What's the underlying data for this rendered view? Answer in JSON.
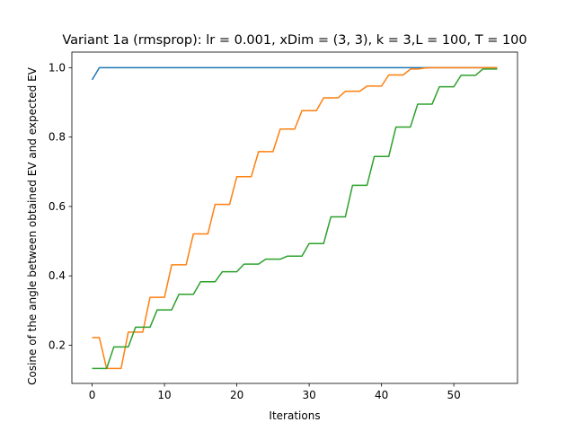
{
  "chart_data": {
    "type": "line",
    "title": "Variant 1a (rmsprop): lr = 0.001, xDim = (3, 3), k = 3,L = 100, T = 100",
    "xlabel": "Iterations",
    "ylabel": "Cosine of the angle between obtained EV and expected EV",
    "xlim": [
      -2.8,
      58.8
    ],
    "ylim": [
      0.09,
      1.045
    ],
    "xticks": [
      0,
      10,
      20,
      30,
      40,
      50
    ],
    "yticks": [
      0.2,
      0.4,
      0.6,
      0.8,
      1.0
    ],
    "ytick_labels": [
      "0.2",
      "0.4",
      "0.6",
      "0.8",
      "1.0"
    ],
    "grid": false,
    "x": [
      0,
      1,
      2,
      3,
      4,
      5,
      6,
      7,
      8,
      9,
      10,
      11,
      12,
      13,
      14,
      15,
      16,
      17,
      18,
      19,
      20,
      21,
      22,
      23,
      24,
      25,
      26,
      27,
      28,
      29,
      30,
      31,
      32,
      33,
      34,
      35,
      36,
      37,
      38,
      39,
      40,
      41,
      42,
      43,
      44,
      45,
      46,
      47,
      48,
      49,
      50,
      51,
      52,
      53,
      54,
      55,
      56
    ],
    "series": [
      {
        "color": "#1f77b4",
        "values": [
          0.965,
          1.0,
          1.0,
          1.0,
          1.0,
          1.0,
          1.0,
          1.0,
          1.0,
          1.0,
          1.0,
          1.0,
          1.0,
          1.0,
          1.0,
          1.0,
          1.0,
          1.0,
          1.0,
          1.0,
          1.0,
          1.0,
          1.0,
          1.0,
          1.0,
          1.0,
          1.0,
          1.0,
          1.0,
          1.0,
          1.0,
          1.0,
          1.0,
          1.0,
          1.0,
          1.0,
          1.0,
          1.0,
          1.0,
          1.0,
          1.0,
          1.0,
          1.0,
          1.0,
          1.0,
          1.0,
          1.0,
          1.0,
          1.0,
          1.0,
          1.0,
          1.0,
          1.0,
          1.0,
          1.0,
          1.0,
          1.0
        ]
      },
      {
        "color": "#ff7f0e",
        "values": [
          0.222,
          0.222,
          0.133,
          0.133,
          0.133,
          0.238,
          0.238,
          0.238,
          0.338,
          0.338,
          0.338,
          0.432,
          0.432,
          0.432,
          0.521,
          0.521,
          0.521,
          0.606,
          0.606,
          0.606,
          0.686,
          0.686,
          0.686,
          0.758,
          0.758,
          0.758,
          0.823,
          0.823,
          0.823,
          0.876,
          0.876,
          0.876,
          0.913,
          0.913,
          0.913,
          0.932,
          0.932,
          0.932,
          0.947,
          0.947,
          0.947,
          0.979,
          0.979,
          0.979,
          0.996,
          0.996,
          0.999,
          1.0,
          1.0,
          1.0,
          1.0,
          1.0,
          1.0,
          1.0,
          1.0,
          1.0,
          1.0
        ]
      },
      {
        "color": "#2ca02c",
        "values": [
          0.133,
          0.133,
          0.133,
          0.195,
          0.195,
          0.195,
          0.252,
          0.252,
          0.252,
          0.302,
          0.302,
          0.302,
          0.347,
          0.347,
          0.347,
          0.383,
          0.383,
          0.383,
          0.412,
          0.412,
          0.412,
          0.434,
          0.434,
          0.434,
          0.448,
          0.448,
          0.448,
          0.457,
          0.457,
          0.457,
          0.493,
          0.493,
          0.493,
          0.57,
          0.57,
          0.57,
          0.661,
          0.661,
          0.661,
          0.744,
          0.744,
          0.744,
          0.829,
          0.829,
          0.829,
          0.895,
          0.895,
          0.895,
          0.945,
          0.945,
          0.945,
          0.978,
          0.978,
          0.978,
          0.996,
          0.996,
          0.996
        ]
      }
    ]
  }
}
